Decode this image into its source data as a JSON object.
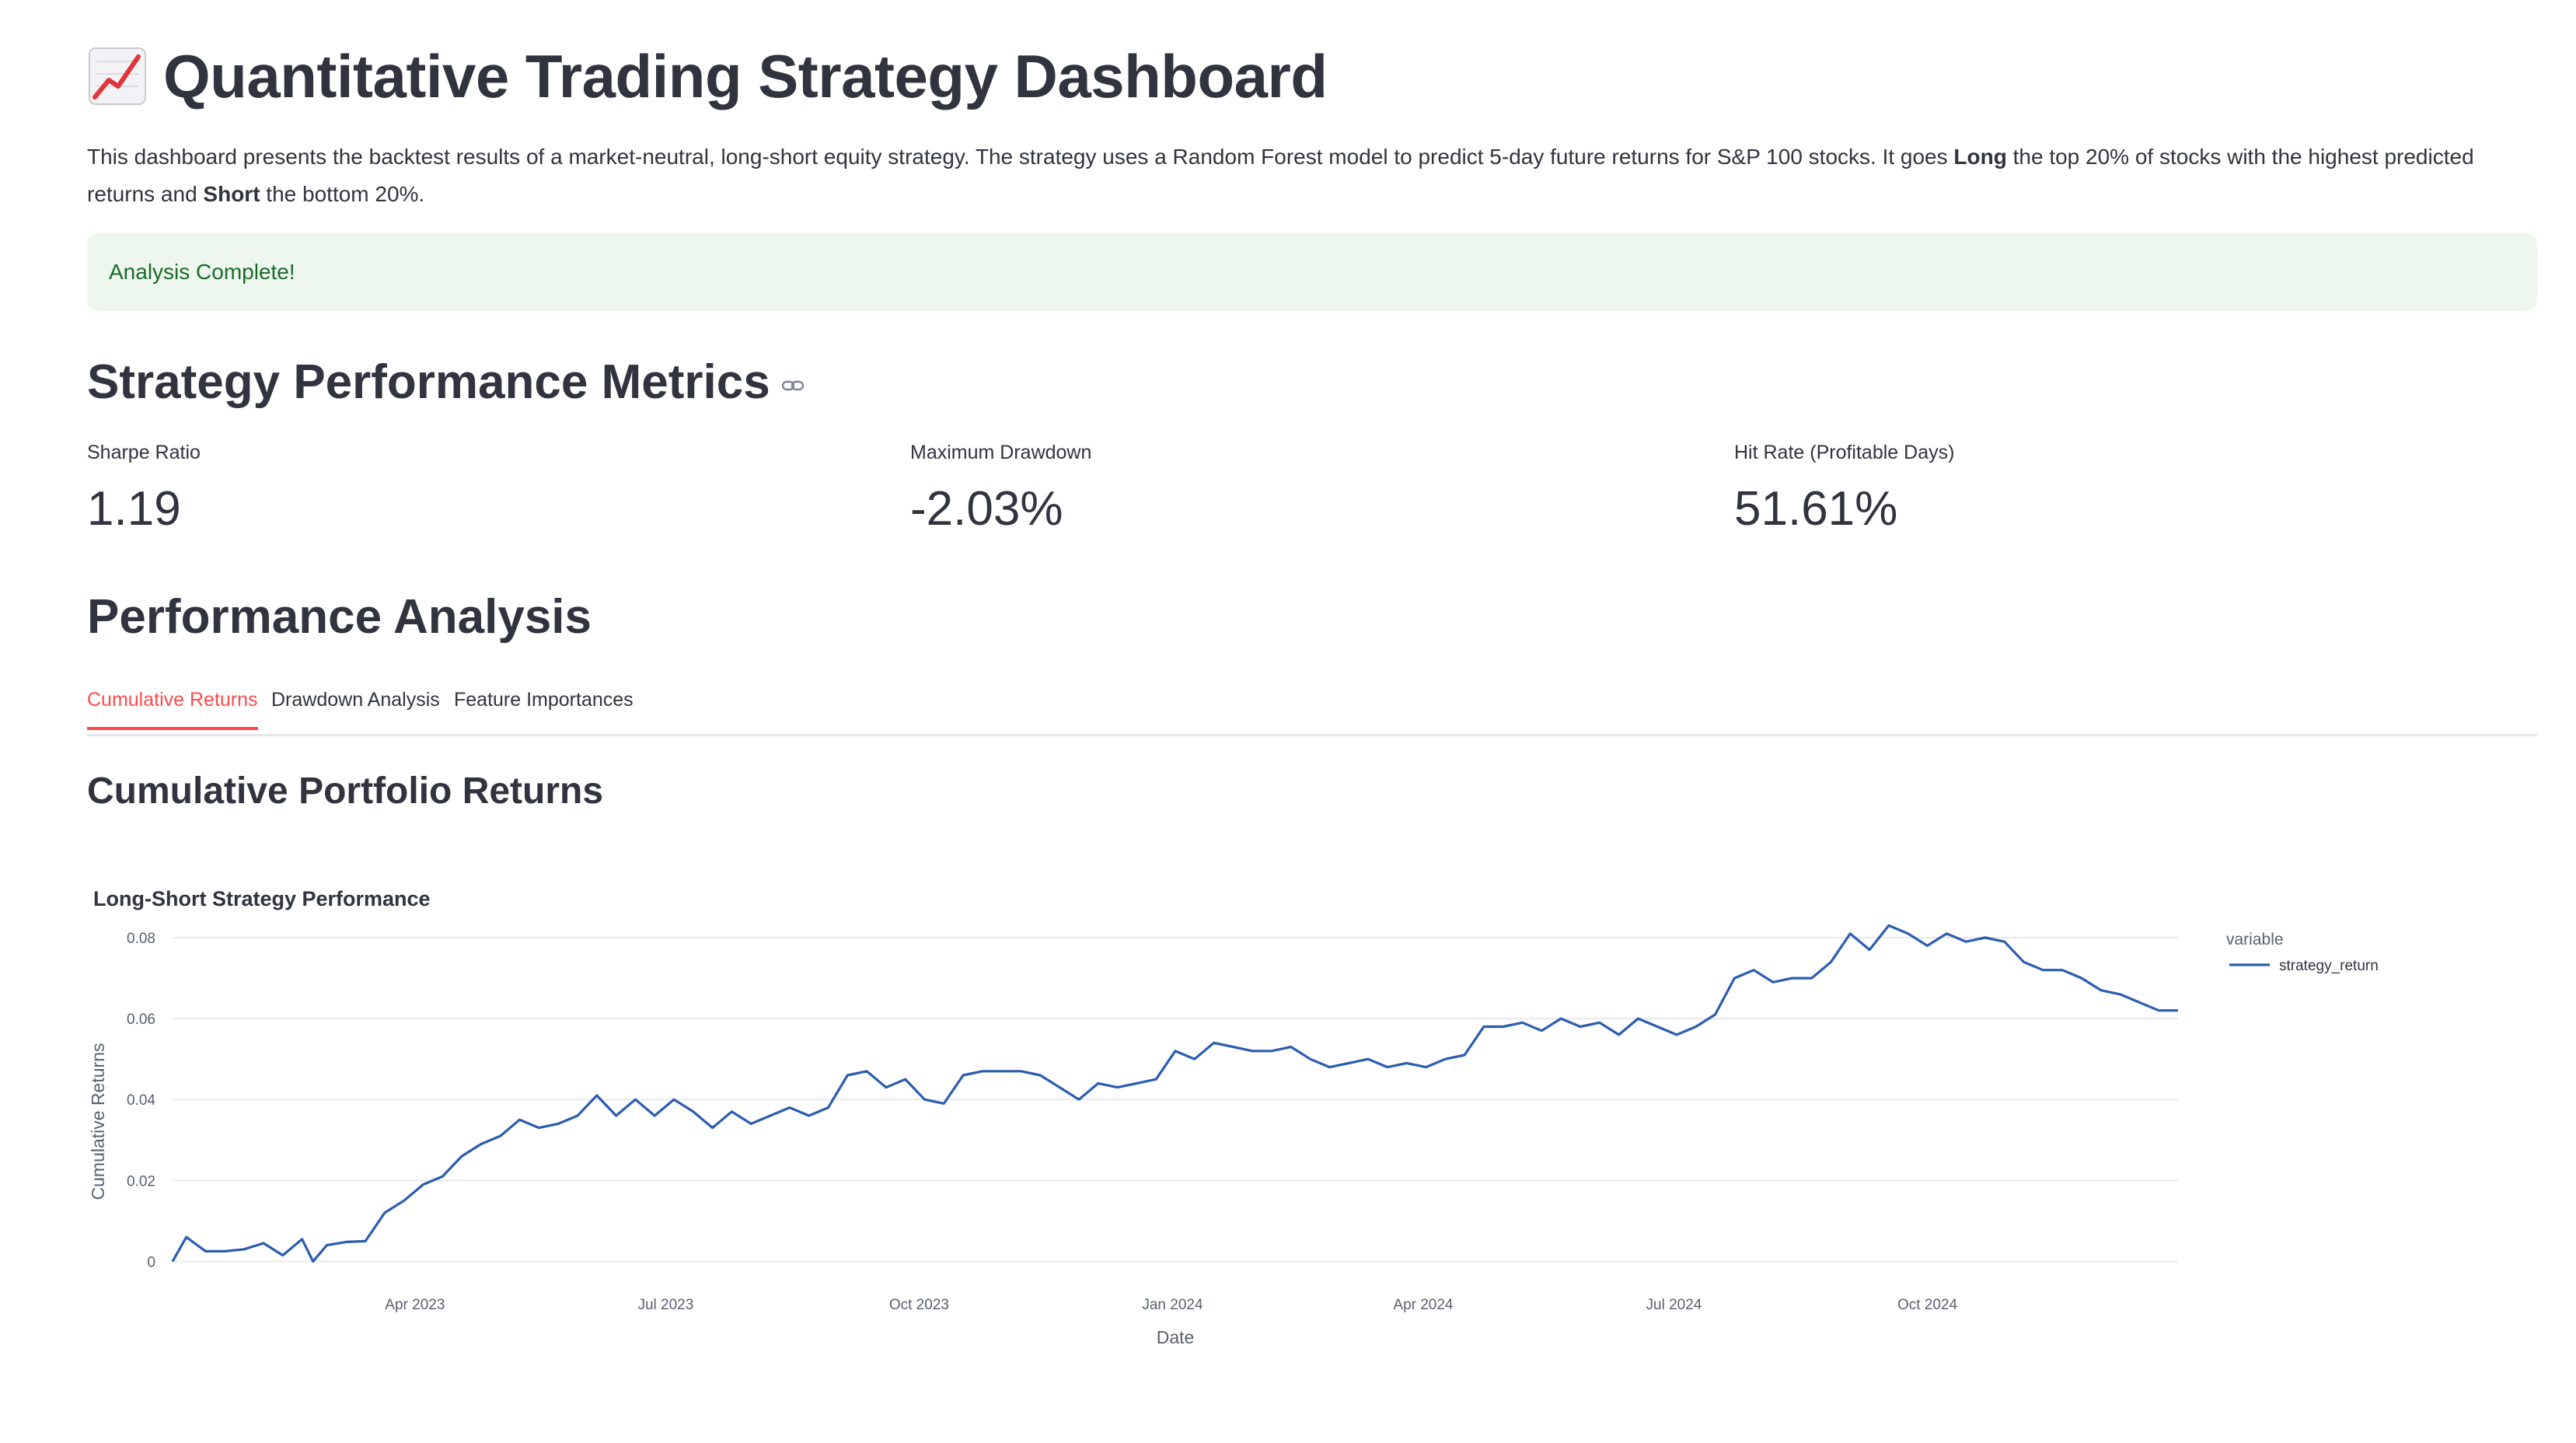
{
  "header": {
    "icon": "chart-increasing-icon",
    "title": "Quantitative Trading Strategy Dashboard"
  },
  "intro": {
    "p1": "This dashboard presents the backtest results of a market-neutral, long-short equity strategy. The strategy uses a Random Forest model to predict 5-day future returns for S&P 100 stocks. It goes ",
    "long": "Long",
    "p2": " the top 20% of stocks with the highest predicted returns and ",
    "short": "Short",
    "p3": " the bottom 20%."
  },
  "alert": {
    "text": "Analysis Complete!"
  },
  "metrics_section": {
    "title": "Strategy Performance Metrics",
    "items": [
      {
        "label": "Sharpe Ratio",
        "value": "1.19"
      },
      {
        "label": "Maximum Drawdown",
        "value": "-2.03%"
      },
      {
        "label": "Hit Rate (Profitable Days)",
        "value": "51.61%"
      }
    ]
  },
  "analysis": {
    "title": "Performance Analysis",
    "tabs": [
      {
        "label": "Cumulative Returns",
        "active": true
      },
      {
        "label": "Drawdown Analysis",
        "active": false
      },
      {
        "label": "Feature Importances",
        "active": false
      }
    ],
    "subtitle": "Cumulative Portfolio Returns"
  },
  "colors": {
    "line": "#2a5db0",
    "accent": "#ff4b4b",
    "success_bg": "#eef7ee",
    "success_text": "#1a6b2a"
  },
  "chart_data": {
    "type": "line",
    "title": "Long-Short Strategy Performance",
    "xlabel": "Date",
    "ylabel": "Cumulative Returns",
    "xlim": [
      "2023-01-03",
      "2024-12-31"
    ],
    "ylim": [
      -0.0005,
      0.085
    ],
    "yticks": [
      0,
      0.02,
      0.04,
      0.06,
      0.08
    ],
    "ytick_labels": [
      "0",
      "0.02",
      "0.04",
      "0.06",
      "0.08"
    ],
    "xticks": [
      "2023-04-01",
      "2023-07-01",
      "2023-10-01",
      "2024-01-01",
      "2024-04-01",
      "2024-07-01",
      "2024-10-01"
    ],
    "xtick_labels": [
      "Apr 2023",
      "Jul 2023",
      "Oct 2023",
      "Jan 2024",
      "Apr 2024",
      "Jul 2024",
      "Oct 2024"
    ],
    "grid": true,
    "legend": {
      "title": "variable",
      "position": "right"
    },
    "series": [
      {
        "name": "strategy_return",
        "x": [
          "2023-01-03",
          "2023-01-08",
          "2023-01-15",
          "2023-01-22",
          "2023-01-29",
          "2023-02-05",
          "2023-02-12",
          "2023-02-19",
          "2023-02-23",
          "2023-02-28",
          "2023-03-07",
          "2023-03-14",
          "2023-03-21",
          "2023-03-28",
          "2023-04-04",
          "2023-04-11",
          "2023-04-18",
          "2023-04-25",
          "2023-05-02",
          "2023-05-09",
          "2023-05-16",
          "2023-05-23",
          "2023-05-30",
          "2023-06-06",
          "2023-06-13",
          "2023-06-20",
          "2023-06-27",
          "2023-07-04",
          "2023-07-11",
          "2023-07-18",
          "2023-07-25",
          "2023-08-01",
          "2023-08-08",
          "2023-08-15",
          "2023-08-22",
          "2023-08-29",
          "2023-09-05",
          "2023-09-12",
          "2023-09-19",
          "2023-09-26",
          "2023-10-03",
          "2023-10-10",
          "2023-10-17",
          "2023-10-24",
          "2023-10-31",
          "2023-11-07",
          "2023-11-14",
          "2023-11-21",
          "2023-11-28",
          "2023-12-05",
          "2023-12-12",
          "2023-12-19",
          "2023-12-26",
          "2024-01-02",
          "2024-01-09",
          "2024-01-16",
          "2024-01-23",
          "2024-01-30",
          "2024-02-06",
          "2024-02-13",
          "2024-02-20",
          "2024-02-27",
          "2024-03-05",
          "2024-03-12",
          "2024-03-19",
          "2024-03-26",
          "2024-04-02",
          "2024-04-09",
          "2024-04-16",
          "2024-04-23",
          "2024-04-30",
          "2024-05-07",
          "2024-05-14",
          "2024-05-21",
          "2024-05-28",
          "2024-06-04",
          "2024-06-11",
          "2024-06-18",
          "2024-06-25",
          "2024-07-02",
          "2024-07-09",
          "2024-07-16",
          "2024-07-23",
          "2024-07-30",
          "2024-08-06",
          "2024-08-13",
          "2024-08-20",
          "2024-08-27",
          "2024-09-03",
          "2024-09-10",
          "2024-09-17",
          "2024-09-24",
          "2024-10-01",
          "2024-10-08",
          "2024-10-15",
          "2024-10-22",
          "2024-10-29",
          "2024-11-05",
          "2024-11-12",
          "2024-11-19",
          "2024-11-26",
          "2024-12-03",
          "2024-12-10",
          "2024-12-17",
          "2024-12-24",
          "2024-12-31"
        ],
        "y": [
          0.0,
          0.006,
          0.0025,
          0.0025,
          0.003,
          0.0045,
          0.0015,
          0.0055,
          0.0,
          0.004,
          0.0048,
          0.005,
          0.012,
          0.015,
          0.019,
          0.021,
          0.026,
          0.029,
          0.031,
          0.035,
          0.033,
          0.034,
          0.036,
          0.041,
          0.036,
          0.04,
          0.036,
          0.04,
          0.037,
          0.033,
          0.037,
          0.034,
          0.036,
          0.038,
          0.036,
          0.038,
          0.046,
          0.047,
          0.043,
          0.045,
          0.04,
          0.039,
          0.046,
          0.047,
          0.047,
          0.047,
          0.046,
          0.043,
          0.04,
          0.044,
          0.043,
          0.044,
          0.045,
          0.052,
          0.05,
          0.054,
          0.053,
          0.052,
          0.052,
          0.053,
          0.05,
          0.048,
          0.049,
          0.05,
          0.048,
          0.049,
          0.048,
          0.05,
          0.051,
          0.058,
          0.058,
          0.059,
          0.057,
          0.06,
          0.058,
          0.059,
          0.056,
          0.06,
          0.058,
          0.056,
          0.058,
          0.061,
          0.07,
          0.072,
          0.069,
          0.07,
          0.07,
          0.074,
          0.081,
          0.077,
          0.083,
          0.081,
          0.078,
          0.081,
          0.079,
          0.08,
          0.079,
          0.074,
          0.072,
          0.072,
          0.07,
          0.067,
          0.066,
          0.064,
          0.062,
          0.062
        ]
      }
    ]
  }
}
